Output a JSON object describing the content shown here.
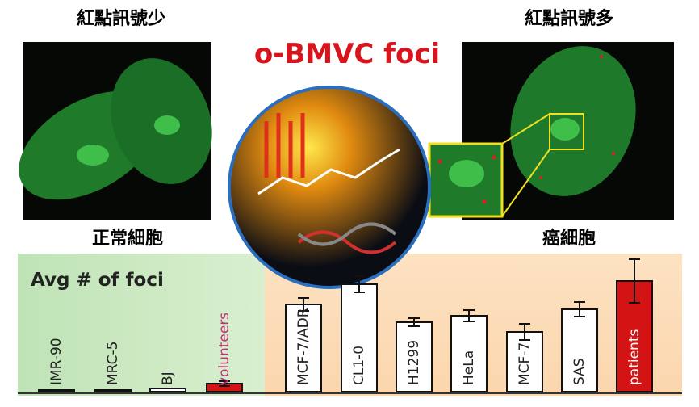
{
  "header": {
    "left_caption": "紅點訊號少",
    "right_caption": "紅點訊號多",
    "title": "o-BMVC foci",
    "left_label": "正常細胞",
    "right_label": "癌細胞"
  },
  "chart_data": {
    "type": "bar",
    "title": "Avg # of foci",
    "categories": [
      "IMR-90",
      "MRC-5",
      "BJ",
      "volunteers",
      "MCF-7/ADR",
      "CL1-0",
      "H1299",
      "HeLa",
      "MCF-7",
      "SAS",
      "patients"
    ],
    "values": [
      2,
      2,
      4,
      10,
      108,
      133,
      86,
      94,
      74,
      102,
      137
    ],
    "errors": [
      0,
      0,
      0,
      3,
      8,
      10,
      5,
      7,
      10,
      9,
      27
    ],
    "colors": [
      "#ffffff",
      "#ffffff",
      "#ffffff",
      "#d41414",
      "#ffffff",
      "#ffffff",
      "#ffffff",
      "#ffffff",
      "#ffffff",
      "#ffffff",
      "#d41414"
    ],
    "label_colors": [
      "#222222",
      "#222222",
      "#222222",
      "#c0307a",
      "#222222",
      "#222222",
      "#222222",
      "#222222",
      "#222222",
      "#222222",
      "#ffffff"
    ],
    "ylim": [
      0,
      150
    ]
  }
}
